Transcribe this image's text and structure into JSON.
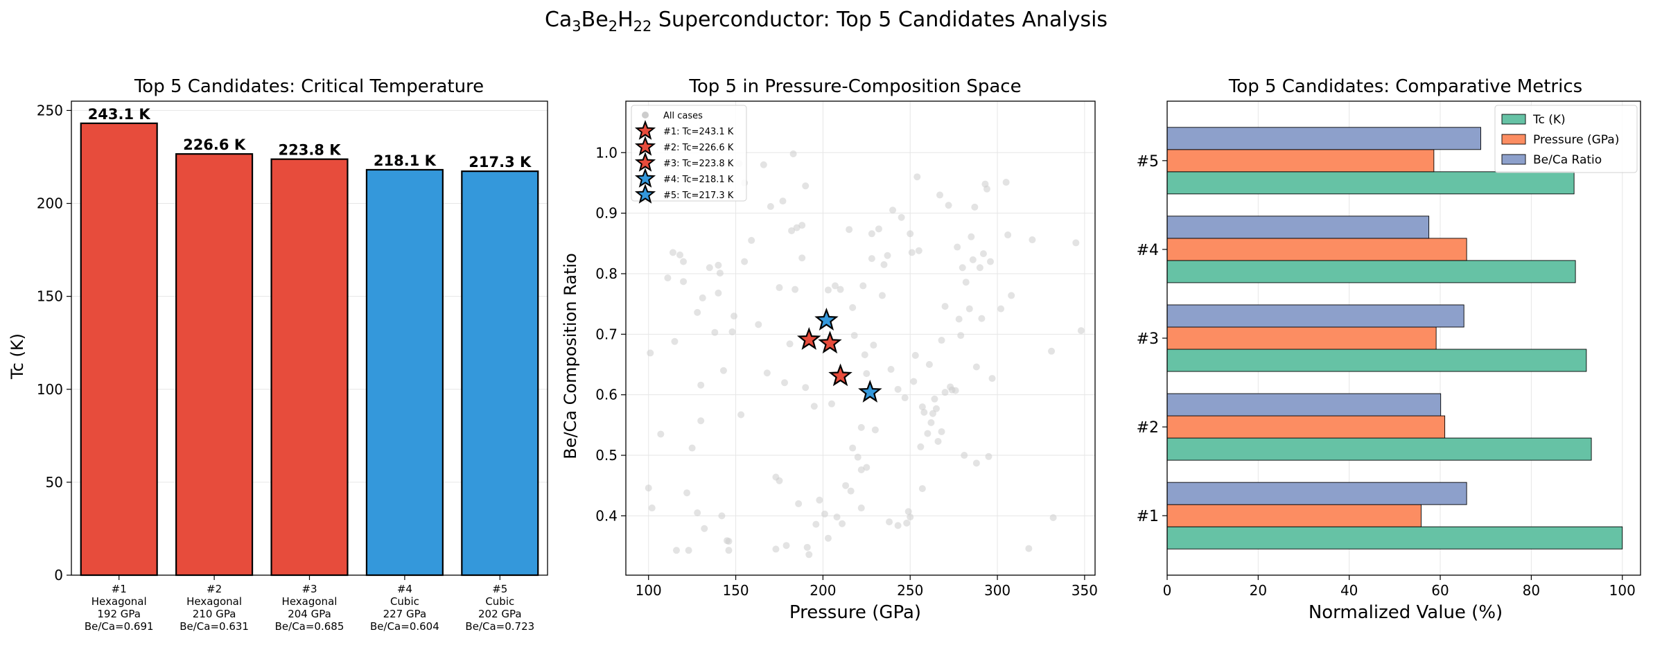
{
  "figure": {
    "suptitle_parts": [
      {
        "t": "Ca",
        "sub": false
      },
      {
        "t": "3",
        "sub": true
      },
      {
        "t": "Be",
        "sub": false
      },
      {
        "t": "2",
        "sub": true
      },
      {
        "t": "H",
        "sub": false
      },
      {
        "t": "22",
        "sub": true
      },
      {
        "t": " Superconductor: Top 5 Candidates Analysis",
        "sub": false
      }
    ]
  },
  "chart_data": [
    {
      "type": "bar",
      "title": "Top 5 Candidates: Critical Temperature",
      "ylabel": "Tc (K)",
      "xlabel": "",
      "ylim": [
        0,
        255
      ],
      "yticks": [
        0,
        50,
        100,
        150,
        200,
        250
      ],
      "grid": true,
      "categories": [
        [
          "#1",
          "Hexagonal",
          "192 GPa",
          "Be/Ca=0.691"
        ],
        [
          "#2",
          "Hexagonal",
          "210 GPa",
          "Be/Ca=0.631"
        ],
        [
          "#3",
          "Hexagonal",
          "204 GPa",
          "Be/Ca=0.685"
        ],
        [
          "#4",
          "Cubic",
          "227 GPa",
          "Be/Ca=0.604"
        ],
        [
          "#5",
          "Cubic",
          "202 GPa",
          "Be/Ca=0.723"
        ]
      ],
      "values": [
        243.1,
        226.6,
        223.8,
        218.1,
        217.3
      ],
      "value_labels": [
        "243.1 K",
        "226.6 K",
        "223.8 K",
        "218.1 K",
        "217.3 K"
      ],
      "colors": [
        "#e74c3c",
        "#e74c3c",
        "#e74c3c",
        "#3498db",
        "#3498db"
      ]
    },
    {
      "type": "scatter",
      "title": "Top 5 in Pressure-Composition Space",
      "xlabel": "Pressure (GPa)",
      "ylabel": "Be/Ca Composition Ratio",
      "xlim": [
        87,
        356
      ],
      "ylim": [
        0.302,
        1.085
      ],
      "xticks": [
        100,
        150,
        200,
        250,
        300,
        350
      ],
      "yticks": [
        0.4,
        0.5,
        0.6,
        0.7,
        0.8,
        0.9,
        1.0
      ],
      "legend_position": "top-left",
      "background_series": {
        "name": "All cases",
        "color": "#cccccc",
        "points": [
          [
            100,
            0.446
          ],
          [
            102,
            0.413
          ],
          [
            101,
            0.669
          ],
          [
            107,
            0.535
          ],
          [
            111,
            0.793
          ],
          [
            114,
            0.835
          ],
          [
            115,
            0.688
          ],
          [
            116,
            0.343
          ],
          [
            118,
            0.831
          ],
          [
            120,
            0.82
          ],
          [
            120,
            0.787
          ],
          [
            123,
            0.343
          ],
          [
            122,
            0.438
          ],
          [
            125,
            0.512
          ],
          [
            128,
            0.736
          ],
          [
            128,
            0.405
          ],
          [
            130,
            0.616
          ],
          [
            130,
            0.557
          ],
          [
            131,
            0.76
          ],
          [
            132,
            0.379
          ],
          [
            135,
            0.81
          ],
          [
            138,
            0.703
          ],
          [
            140,
            0.768
          ],
          [
            140,
            0.814
          ],
          [
            141,
            0.801
          ],
          [
            142,
            0.4
          ],
          [
            143,
            0.64
          ],
          [
            145,
            0.359
          ],
          [
            146,
            0.343
          ],
          [
            146,
            0.358
          ],
          [
            148,
            0.704
          ],
          [
            149,
            0.73
          ],
          [
            152,
            0.982
          ],
          [
            153,
            0.567
          ],
          [
            155,
            0.95
          ],
          [
            155,
            0.82
          ],
          [
            159,
            0.855
          ],
          [
            163,
            0.716
          ],
          [
            166,
            0.98
          ],
          [
            168,
            0.636
          ],
          [
            170,
            0.911
          ],
          [
            173,
            0.464
          ],
          [
            173,
            0.345
          ],
          [
            175,
            0.458
          ],
          [
            175,
            0.777
          ],
          [
            177,
            0.92
          ],
          [
            178,
            0.62
          ],
          [
            179,
            0.351
          ],
          [
            181,
            0.684
          ],
          [
            182,
            0.871
          ],
          [
            183,
            0.998
          ],
          [
            184,
            0.774
          ],
          [
            185,
            0.876
          ],
          [
            186,
            0.42
          ],
          [
            188,
            0.88
          ],
          [
            188,
            0.826
          ],
          [
            190,
            0.612
          ],
          [
            190,
            0.945
          ],
          [
            191,
            0.348
          ],
          [
            192,
            0.336
          ],
          [
            195,
            0.581
          ],
          [
            196,
            0.386
          ],
          [
            198,
            0.426
          ],
          [
            201,
            0.403
          ],
          [
            203,
            0.773
          ],
          [
            203,
            0.363
          ],
          [
            205,
            0.585
          ],
          [
            207,
            0.78
          ],
          [
            208,
            0.398
          ],
          [
            210,
            0.774
          ],
          [
            211,
            0.387
          ],
          [
            212,
            0.632
          ],
          [
            213,
            0.45
          ],
          [
            215,
            0.873
          ],
          [
            216,
            0.441
          ],
          [
            217,
            0.744
          ],
          [
            217,
            0.512
          ],
          [
            218,
            0.698
          ],
          [
            220,
            0.497
          ],
          [
            222,
            0.546
          ],
          [
            222,
            0.476
          ],
          [
            222,
            0.413
          ],
          [
            223,
            0.78
          ],
          [
            224,
            0.666
          ],
          [
            225,
            0.48
          ],
          [
            225,
            0.635
          ],
          [
            229,
            0.682
          ],
          [
            228,
            0.825
          ],
          [
            228,
            0.866
          ],
          [
            230,
            0.542
          ],
          [
            232,
            0.874
          ],
          [
            234,
            0.764
          ],
          [
            235,
            0.815
          ],
          [
            237,
            0.83
          ],
          [
            238,
            0.39
          ],
          [
            239,
            0.642
          ],
          [
            240,
            0.905
          ],
          [
            243,
            0.384
          ],
          [
            243,
            0.609
          ],
          [
            245,
            0.893
          ],
          [
            247,
            0.595
          ],
          [
            249,
            0.407
          ],
          [
            248,
            0.388
          ],
          [
            250,
            0.398
          ],
          [
            250,
            0.866
          ],
          [
            251,
            0.835
          ],
          [
            252,
            0.622
          ],
          [
            253,
            0.665
          ],
          [
            254,
            0.96
          ],
          [
            255,
            0.838
          ],
          [
            256,
            0.514
          ],
          [
            257,
            0.445
          ],
          [
            257,
            0.58
          ],
          [
            258,
            0.571
          ],
          [
            260,
            0.536
          ],
          [
            261,
            0.65
          ],
          [
            262,
            0.554
          ],
          [
            263,
            0.569
          ],
          [
            264,
            0.593
          ],
          [
            265,
            0.577
          ],
          [
            266,
            0.523
          ],
          [
            267,
            0.93
          ],
          [
            268,
            0.539
          ],
          [
            268,
            0.69
          ],
          [
            270,
            0.604
          ],
          [
            270,
            0.746
          ],
          [
            272,
            0.913
          ],
          [
            273,
            0.613
          ],
          [
            274,
            0.608
          ],
          [
            276,
            0.607
          ],
          [
            277,
            0.844
          ],
          [
            278,
            0.725
          ],
          [
            279,
            0.698
          ],
          [
            280,
            0.81
          ],
          [
            281,
            0.5
          ],
          [
            282,
            0.786
          ],
          [
            284,
            0.742
          ],
          [
            285,
            0.861
          ],
          [
            286,
            0.823
          ],
          [
            287,
            0.91
          ],
          [
            288,
            0.487
          ],
          [
            288,
            0.646
          ],
          [
            290,
            0.81
          ],
          [
            291,
            0.726
          ],
          [
            292,
            0.833
          ],
          [
            293,
            0.948
          ],
          [
            294,
            0.94
          ],
          [
            295,
            0.498
          ],
          [
            296,
            0.82
          ],
          [
            297,
            0.627
          ],
          [
            302,
            0.742
          ],
          [
            305,
            0.951
          ],
          [
            306,
            0.864
          ],
          [
            308,
            0.764
          ],
          [
            318,
            0.346
          ],
          [
            320,
            0.856
          ],
          [
            331,
            0.672
          ],
          [
            332,
            0.397
          ],
          [
            345,
            0.851
          ],
          [
            348,
            0.706
          ]
        ]
      },
      "highlight_series": [
        {
          "name": "#1: Tc=243.1 K",
          "x": 192,
          "y": 0.691,
          "color": "#e74c3c"
        },
        {
          "name": "#2: Tc=226.6 K",
          "x": 210,
          "y": 0.631,
          "color": "#e74c3c"
        },
        {
          "name": "#3: Tc=223.8 K",
          "x": 204,
          "y": 0.685,
          "color": "#e74c3c"
        },
        {
          "name": "#4: Tc=218.1 K",
          "x": 227,
          "y": 0.604,
          "color": "#3498db"
        },
        {
          "name": "#5: Tc=217.3 K",
          "x": 202,
          "y": 0.723,
          "color": "#3498db"
        }
      ]
    },
    {
      "type": "bar",
      "orientation": "horizontal",
      "title": "Top 5 Candidates: Comparative Metrics",
      "xlabel": "Normalized Value (%)",
      "ylabel": "",
      "xlim": [
        0,
        104
      ],
      "xticks": [
        0,
        20,
        40,
        60,
        80,
        100
      ],
      "legend_position": "top-right",
      "categories": [
        "#1",
        "#2",
        "#3",
        "#4",
        "#5"
      ],
      "series": [
        {
          "name": "Tc (K)",
          "color": "#66c2a5",
          "values": [
            100.0,
            93.2,
            92.1,
            89.7,
            89.4
          ]
        },
        {
          "name": "Pressure (GPa)",
          "color": "#fc8d62",
          "values": [
            55.8,
            61.0,
            59.1,
            65.8,
            58.6
          ]
        },
        {
          "name": "Be/Ca Ratio",
          "color": "#8da0cb",
          "values": [
            65.8,
            60.1,
            65.2,
            57.5,
            68.9
          ]
        }
      ]
    }
  ]
}
